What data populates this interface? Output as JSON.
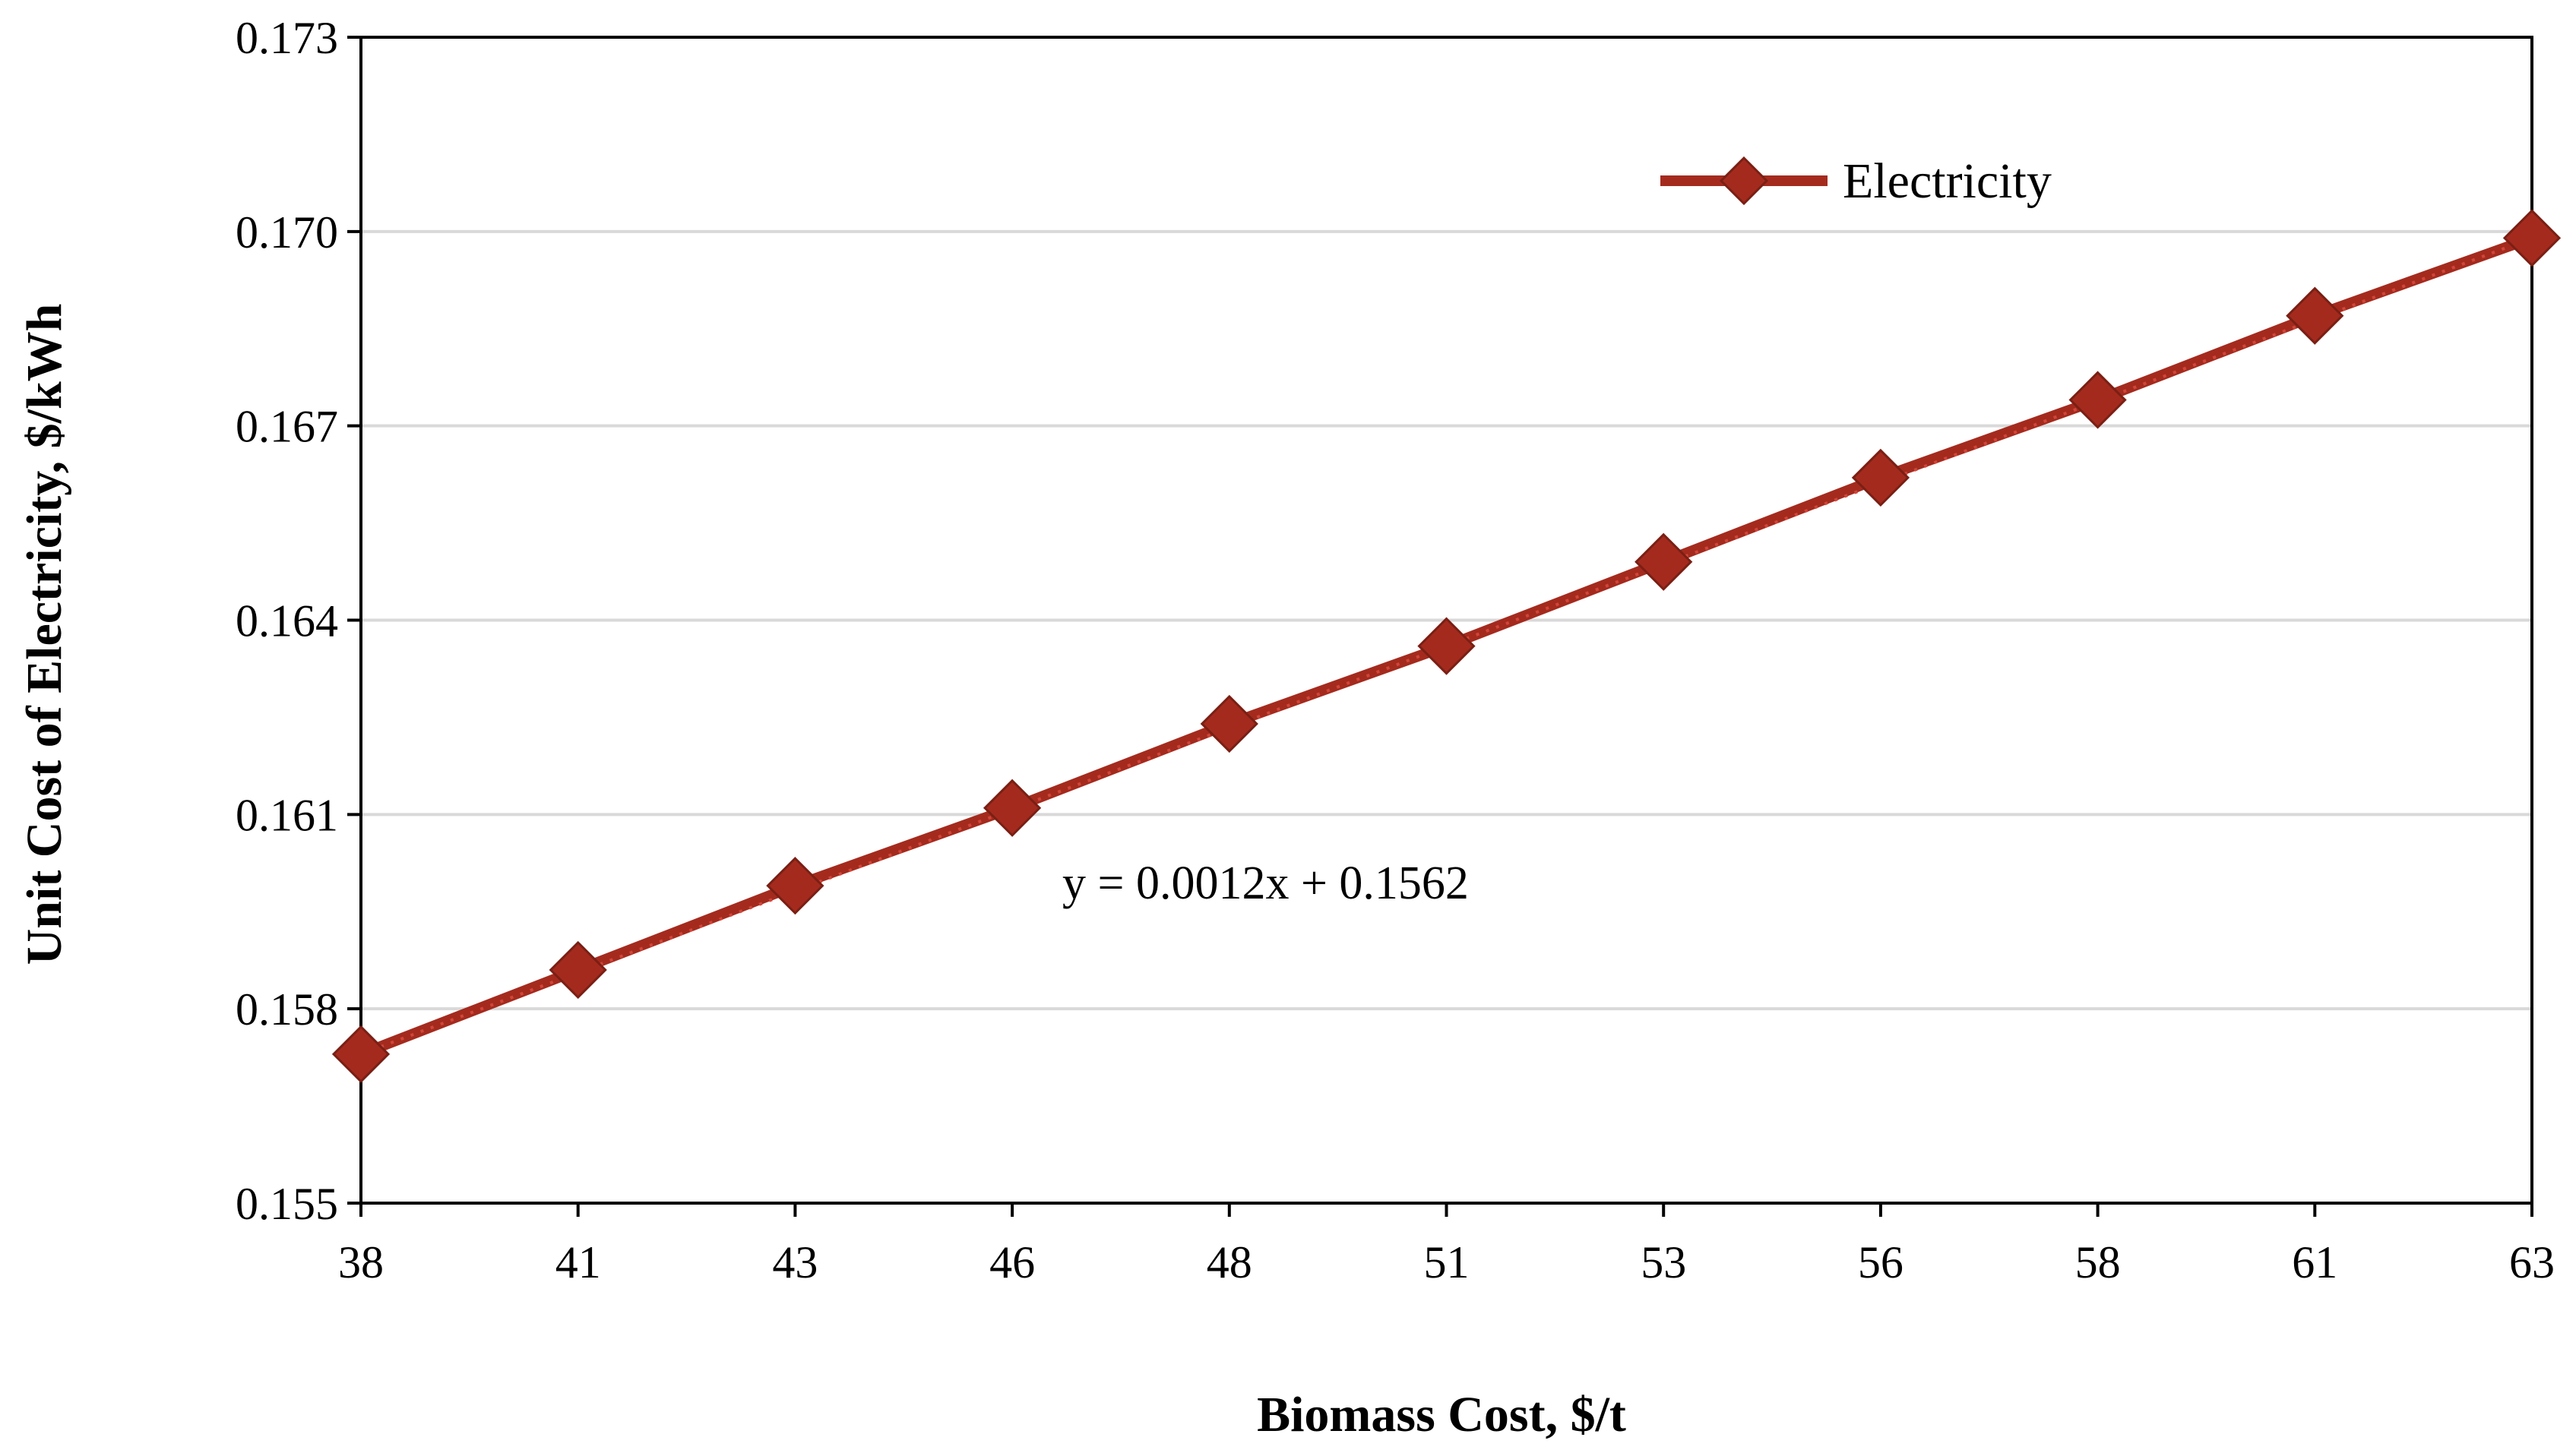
{
  "chart_data": {
    "type": "line",
    "title": "",
    "xlabel": "Biomass  Cost, $/t",
    "ylabel": "Unit  Cost of Electricity,  $/kWh",
    "categories": [
      "38",
      "41",
      "43",
      "46",
      "48",
      "51",
      "53",
      "56",
      "58",
      "61",
      "63"
    ],
    "series": [
      {
        "name": "Electricity",
        "color": "#a52a1e",
        "marker": "diamond",
        "values": [
          0.1573,
          0.1586,
          0.1599,
          0.1611,
          0.1624,
          0.1636,
          0.1649,
          0.1662,
          0.1674,
          0.1687,
          0.1699
        ]
      }
    ],
    "ylim": [
      0.155,
      0.173
    ],
    "yticks": [
      "0.155",
      "0.158",
      "0.161",
      "0.164",
      "0.167",
      "0.170",
      "0.173"
    ],
    "grid": "horizontal",
    "legend": "top-right",
    "trendline": {
      "type": "linear",
      "style": "dotted",
      "equation": "y = 0.0012x  + 0.1562"
    }
  }
}
